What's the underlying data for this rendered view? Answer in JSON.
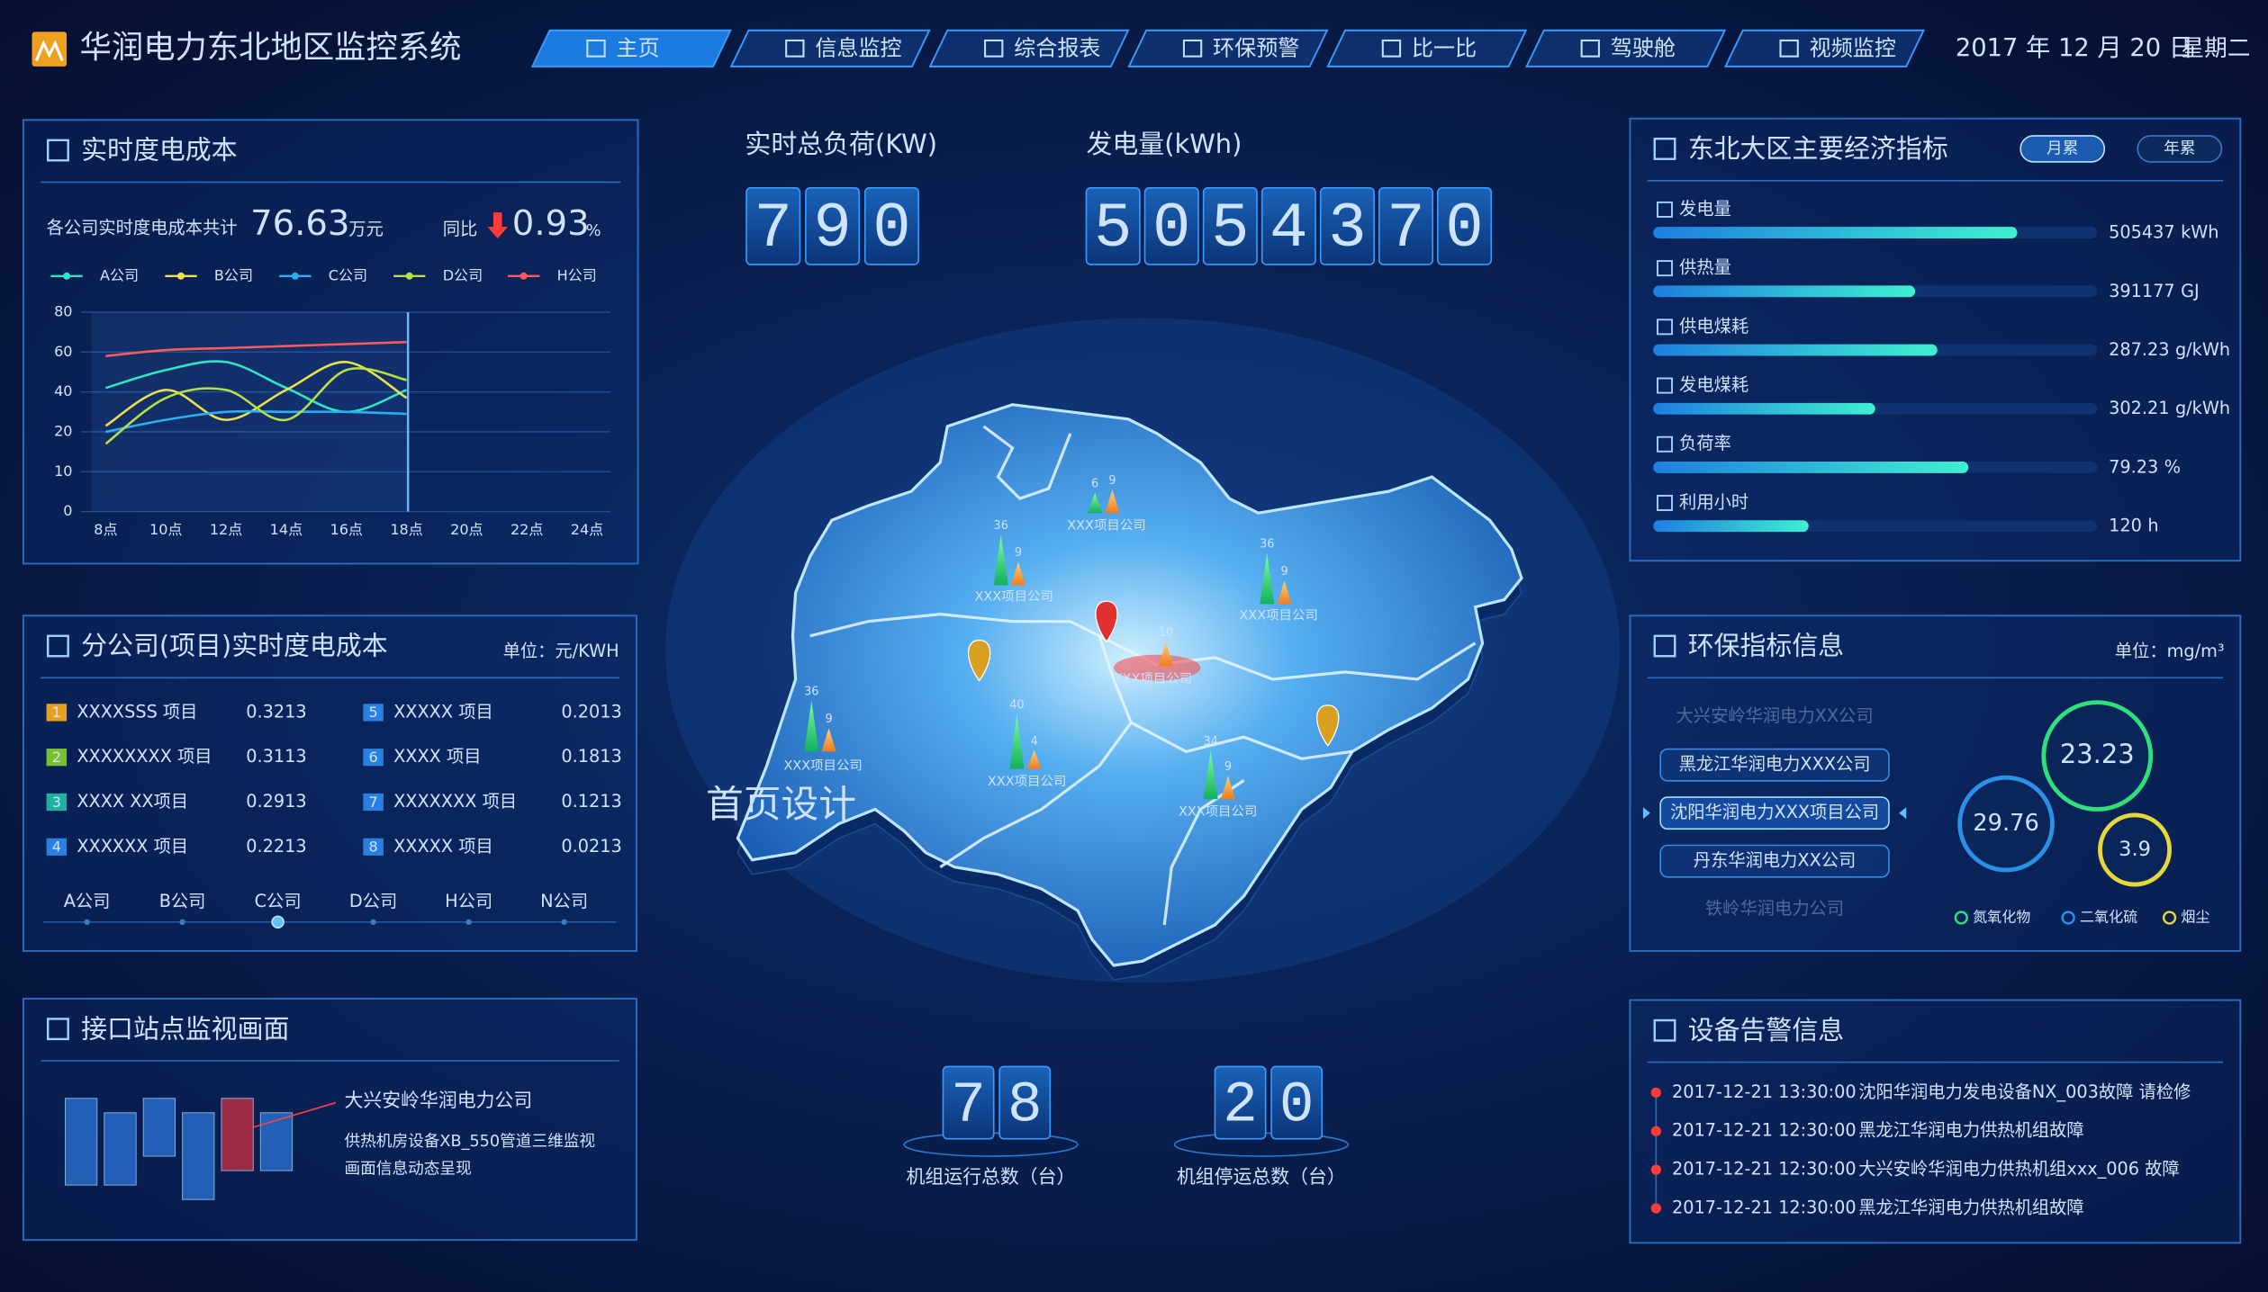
{
  "header": {
    "title": "华润电力东北地区监控系统",
    "nav": [
      "主页",
      "信息监控",
      "综合报表",
      "环保预警",
      "比一比",
      "驾驶舱",
      "视频监控"
    ],
    "date": "2017 年 12 月 20 日",
    "weekday": "星期二"
  },
  "cost_panel": {
    "title": "实时度电成本",
    "total_label": "各公司实时度电成本共计",
    "total": 76.63,
    "total_unit": "万元",
    "yoy_label": "同比",
    "yoy": 0.93,
    "yoy_unit": "%",
    "chart_data": {
      "type": "line",
      "categories": [
        "8点",
        "10点",
        "12点",
        "14点",
        "16点",
        "18点",
        "20点",
        "22点",
        "24点"
      ],
      "ylim": [
        0,
        80
      ],
      "yticks": [
        0,
        10,
        20,
        40,
        60,
        80
      ],
      "grid": true,
      "series": [
        {
          "name": "A公司",
          "color": "#2ee6c0",
          "values": [
            42,
            51,
            55,
            42,
            30,
            41,
            null,
            null,
            null
          ]
        },
        {
          "name": "B公司",
          "color": "#f0e04a",
          "values": [
            23,
            41,
            26,
            41,
            55,
            37,
            null,
            null,
            null
          ]
        },
        {
          "name": "C公司",
          "color": "#2ab0f0",
          "values": [
            20,
            26,
            30,
            30,
            30,
            29,
            null,
            null,
            null
          ]
        },
        {
          "name": "D公司",
          "color": "#b8e040",
          "values": [
            17,
            37,
            41,
            26,
            51,
            46,
            null,
            null,
            null
          ]
        },
        {
          "name": "H公司",
          "color": "#ff5a5a",
          "values": [
            58,
            61,
            62,
            63,
            64,
            65,
            null,
            null,
            null
          ]
        }
      ]
    }
  },
  "branch_panel": {
    "title": "分公司(项目)实时度电成本",
    "unit": "单位：元/KWH",
    "items": [
      {
        "no": 1,
        "name": "XXXXSSS 项目",
        "value": 0.3213,
        "color": "#e8a020"
      },
      {
        "no": 2,
        "name": "XXXXXXXX 项目",
        "value": 0.3113,
        "color": "#7ac030"
      },
      {
        "no": 3,
        "name": "XXXX XX项目",
        "value": 0.2913,
        "color": "#20b0a0"
      },
      {
        "no": 4,
        "name": "XXXXXX 项目",
        "value": 0.2213,
        "color": "#2a80e0"
      },
      {
        "no": 5,
        "name": "XXXXX 项目",
        "value": 0.2013,
        "color": "#2a80e0"
      },
      {
        "no": 6,
        "name": "XXXX 项目",
        "value": 0.1813,
        "color": "#2a80e0"
      },
      {
        "no": 7,
        "name": "XXXXXXX 项目",
        "value": 0.1213,
        "color": "#2a80e0"
      },
      {
        "no": 8,
        "name": "XXXXX 项目",
        "value": 0.0213,
        "color": "#2a80e0"
      }
    ],
    "tabs": [
      "A公司",
      "B公司",
      "C公司",
      "D公司",
      "H公司",
      "N公司"
    ],
    "active_tab": 2
  },
  "site_panel": {
    "title": "接口站点监视画面",
    "site": "大兴安岭华润电力公司",
    "description": [
      "供热机房设备XB_550管道三维监视",
      "画面信息动态呈现"
    ]
  },
  "kpi": {
    "load": {
      "label": "实时总负荷(KW)",
      "value": 790
    },
    "generation": {
      "label": "发电量(kWh)",
      "value": 5054370
    },
    "running": {
      "label": "机组运行总数（台）",
      "value": 78
    },
    "stopped": {
      "label": "机组停运总数（台）",
      "value": 20
    }
  },
  "map": {
    "watermark": "首页设计",
    "projects": [
      {
        "label": "XXX项目公司",
        "green": 6,
        "orange": 9
      },
      {
        "label": "XXX项目公司",
        "green": 36,
        "orange": 9
      },
      {
        "label": "XXX项目公司",
        "green": 36,
        "orange": 9
      },
      {
        "label": "XXX项目公司",
        "green": null,
        "orange": 10
      },
      {
        "label": "XXX项目公司",
        "green": 36,
        "orange": 9
      },
      {
        "label": "XXX项目公司",
        "green": 40,
        "orange": 4
      },
      {
        "label": "XXX项目公司",
        "green": 34,
        "orange": 9
      }
    ]
  },
  "econ_panel": {
    "title": "东北大区主要经济指标",
    "tabs": [
      "月累",
      "年累"
    ],
    "items": [
      {
        "name": "发电量",
        "value": 505437,
        "unit": "kWh",
        "bar": 82
      },
      {
        "name": "供热量",
        "value": 391177,
        "unit": "GJ",
        "bar": 59
      },
      {
        "name": "供电煤耗",
        "value": 287.23,
        "unit": "g/kWh",
        "bar": 64
      },
      {
        "name": "发电煤耗",
        "value": 302.21,
        "unit": "g/kWh",
        "bar": 50
      },
      {
        "name": "负荷率",
        "value": 79.23,
        "unit": "%",
        "bar": 71
      },
      {
        "name": "利用小时",
        "value": 120,
        "unit": "h",
        "bar": 35
      }
    ]
  },
  "env_panel": {
    "title": "环保指标信息",
    "unit": "单位：mg/m³",
    "companies": [
      "大兴安岭华润电力XX公司",
      "黑龙江华润电力XXX公司",
      "沈阳华润电力XXX项目公司",
      "丹东华润电力XX公司",
      "铁岭华润电力公司"
    ],
    "selected": 2,
    "indicators": [
      {
        "name": "氮氧化物",
        "value": 23.23,
        "color": "#2ee07a"
      },
      {
        "name": "二氧化硫",
        "value": 29.76,
        "color": "#2a90e8"
      },
      {
        "name": "烟尘",
        "value": 3.9,
        "color": "#e6d83a"
      }
    ]
  },
  "alarm_panel": {
    "title": "设备告警信息",
    "rows": [
      {
        "time": "2017-12-21 13:30:00",
        "message": "沈阳华润电力发电设备NX_003故障  请检修"
      },
      {
        "time": "2017-12-21 12:30:00",
        "message": "黑龙江华润电力供热机组故障"
      },
      {
        "time": "2017-12-21 12:30:00",
        "message": "大兴安岭华润电力供热机组xxx_006 故障"
      },
      {
        "time": "2017-12-21 12:30:00",
        "message": "黑龙江华润电力供热机组故障"
      }
    ]
  }
}
